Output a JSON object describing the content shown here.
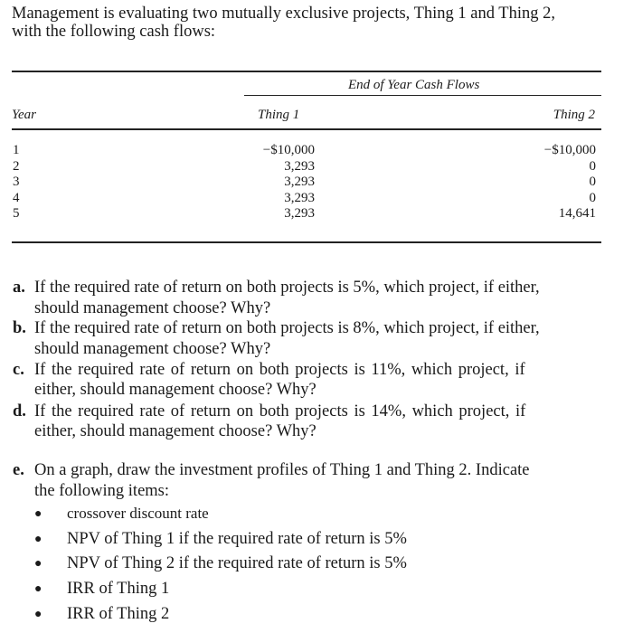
{
  "intro": [
    "Management is evaluating two mutually exclusive projects, Thing 1 and Thing 2,",
    "with the following cash flows:"
  ],
  "table": {
    "group_header": "End of Year Cash Flows",
    "columns": [
      "Year",
      "Thing 1",
      "Thing 2"
    ],
    "rows": [
      [
        "1",
        "−$10,000",
        "−$10,000"
      ],
      [
        "2",
        "3,293",
        "0"
      ],
      [
        "3",
        "3,293",
        "0"
      ],
      [
        "4",
        "3,293",
        "0"
      ],
      [
        "5",
        "3,293",
        "14,641"
      ]
    ]
  },
  "questions": [
    {
      "label": "a.",
      "lines": [
        "If the required rate of return on both projects is 5%, which project, if either,",
        "should management choose? Why?"
      ]
    },
    {
      "label": "b.",
      "lines": [
        "If the required rate of return on both projects is 8%, which project, if either,",
        "should management choose? Why?"
      ]
    },
    {
      "label": "c.",
      "lines": [
        "If the required rate of return on both projects is 11%, which project, if",
        "either, should management choose? Why?"
      ]
    },
    {
      "label": "d.",
      "lines": [
        "If the required rate of return on both projects is 14%, which project, if",
        "either, should management choose? Why?"
      ]
    },
    {
      "label": "e.",
      "lines": [
        "On a graph, draw the investment profiles of Thing 1 and Thing 2. Indicate",
        "the following items:"
      ]
    }
  ],
  "bullets": [
    "crossover discount rate",
    "NPV of Thing 1 if the required rate of return is 5%",
    "NPV of Thing 2 if the required rate of return is 5%",
    "IRR of Thing 1",
    "IRR of Thing 2"
  ]
}
